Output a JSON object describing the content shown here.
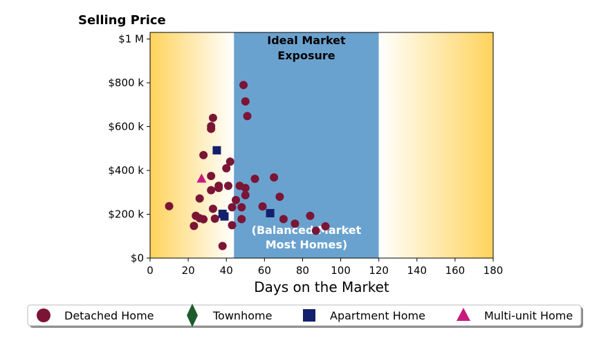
{
  "chart_data": {
    "type": "scatter",
    "title": "Selling Price",
    "xlabel": "Days on the Market",
    "ylabel": "",
    "xlim": [
      0,
      180
    ],
    "ylim": [
      0,
      1030000
    ],
    "x_ticks": [
      0,
      20,
      40,
      60,
      80,
      100,
      120,
      140,
      160,
      180
    ],
    "x_tick_labels": [
      "0",
      "20",
      "40",
      "60",
      "80",
      "100",
      "120",
      "140",
      "160",
      "180"
    ],
    "y_ticks": [
      0,
      200000,
      400000,
      600000,
      800000,
      1000000
    ],
    "y_tick_labels": [
      "$0",
      "$200 k",
      "$400 k",
      "$600 k",
      "$800 k",
      "$1 M"
    ],
    "grid": false,
    "legend_placement": "bottom",
    "colors": {
      "detached": "#7b1535",
      "townhome": "#1f5a2c",
      "apartment": "#13206e",
      "multi_unit": "#c81a7e",
      "band": "#6aa2cf",
      "gradient_edge": "#ffd35c"
    },
    "regions": [
      {
        "name": "Ideal Market Exposure",
        "x_range": [
          44,
          120
        ],
        "label": "Ideal Market\nExposure",
        "sublabel": "(Balanced Market\nMost Homes)"
      }
    ],
    "series": [
      {
        "name": "Detached Home",
        "marker": "circle",
        "points": [
          [
            10,
            237000
          ],
          [
            23,
            147000
          ],
          [
            24,
            193000
          ],
          [
            26,
            182000
          ],
          [
            26,
            272000
          ],
          [
            28,
            177000
          ],
          [
            28,
            470000
          ],
          [
            32,
            310000
          ],
          [
            32,
            375000
          ],
          [
            32,
            590000
          ],
          [
            32,
            602000
          ],
          [
            33,
            640000
          ],
          [
            33,
            225000
          ],
          [
            34,
            180000
          ],
          [
            36,
            320000
          ],
          [
            36,
            330000
          ],
          [
            38,
            55000
          ],
          [
            40,
            410000
          ],
          [
            41,
            330000
          ],
          [
            42,
            440000
          ],
          [
            43,
            150000
          ],
          [
            43,
            232000
          ],
          [
            45,
            265000
          ],
          [
            47,
            330000
          ],
          [
            48,
            232000
          ],
          [
            48,
            178000
          ],
          [
            49,
            790000
          ],
          [
            50,
            715000
          ],
          [
            50,
            320000
          ],
          [
            50,
            287000
          ],
          [
            51,
            648000
          ],
          [
            55,
            362000
          ],
          [
            59,
            236000
          ],
          [
            65,
            368000
          ],
          [
            68,
            280000
          ],
          [
            70,
            178000
          ],
          [
            76,
            157000
          ],
          [
            84,
            193000
          ],
          [
            87,
            125000
          ],
          [
            92,
            145000
          ]
        ]
      },
      {
        "name": "Townhome",
        "marker": "diamond",
        "points": []
      },
      {
        "name": "Apartment Home",
        "marker": "square",
        "points": [
          [
            35,
            492000
          ],
          [
            38,
            202000
          ],
          [
            39,
            190000
          ],
          [
            63,
            205000
          ]
        ]
      },
      {
        "name": "Multi-unit Home",
        "marker": "triangle",
        "points": [
          [
            27,
            362000
          ]
        ]
      }
    ]
  }
}
